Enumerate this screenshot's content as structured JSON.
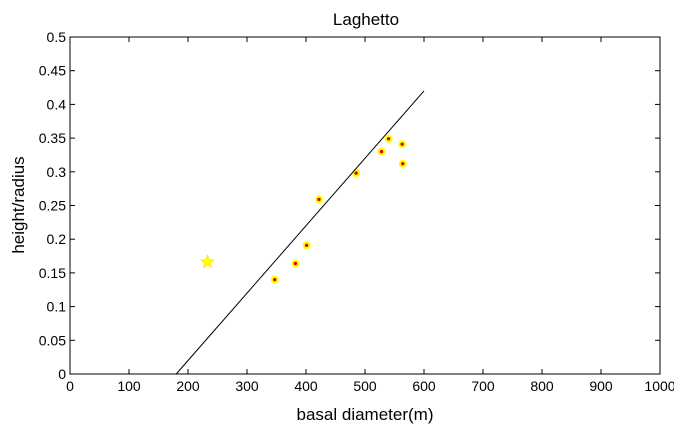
{
  "chart_data": {
    "type": "scatter",
    "title": "Laghetto",
    "xlabel": "basal diameter(m)",
    "ylabel": "height/radius",
    "xlim": [
      0,
      1000
    ],
    "ylim": [
      0,
      0.5
    ],
    "xticks": [
      0,
      100,
      200,
      300,
      400,
      500,
      600,
      700,
      800,
      900,
      1000
    ],
    "yticks": [
      0,
      0.05,
      0.1,
      0.15,
      0.2,
      0.25,
      0.3,
      0.35,
      0.4,
      0.45,
      0.5
    ],
    "xtick_labels": [
      "0",
      "100",
      "200",
      "300",
      "400",
      "500",
      "600",
      "700",
      "800",
      "900",
      "1000"
    ],
    "ytick_labels": [
      "0",
      "0.05",
      "0.1",
      "0.15",
      "0.2",
      "0.25",
      "0.3",
      "0.35",
      "0.4",
      "0.45",
      "0.5"
    ],
    "grid": false,
    "series": [
      {
        "marker": "dot",
        "color": "#ffff00",
        "edge_color": "#e00000",
        "points": [
          {
            "x": 347,
            "y": 0.14
          },
          {
            "x": 382,
            "y": 0.164
          },
          {
            "x": 401,
            "y": 0.191
          },
          {
            "x": 422,
            "y": 0.259
          },
          {
            "x": 485,
            "y": 0.298
          },
          {
            "x": 528,
            "y": 0.33
          },
          {
            "x": 540,
            "y": 0.349
          },
          {
            "x": 563,
            "y": 0.341
          },
          {
            "x": 564,
            "y": 0.312
          }
        ]
      },
      {
        "marker": "star",
        "color": "#ffff00",
        "points": [
          {
            "x": 233,
            "y": 0.166
          }
        ]
      },
      {
        "marker": "line",
        "color": "#000000",
        "points": [
          {
            "x": 180,
            "y": 0
          },
          {
            "x": 600,
            "y": 0.42
          }
        ]
      }
    ]
  }
}
